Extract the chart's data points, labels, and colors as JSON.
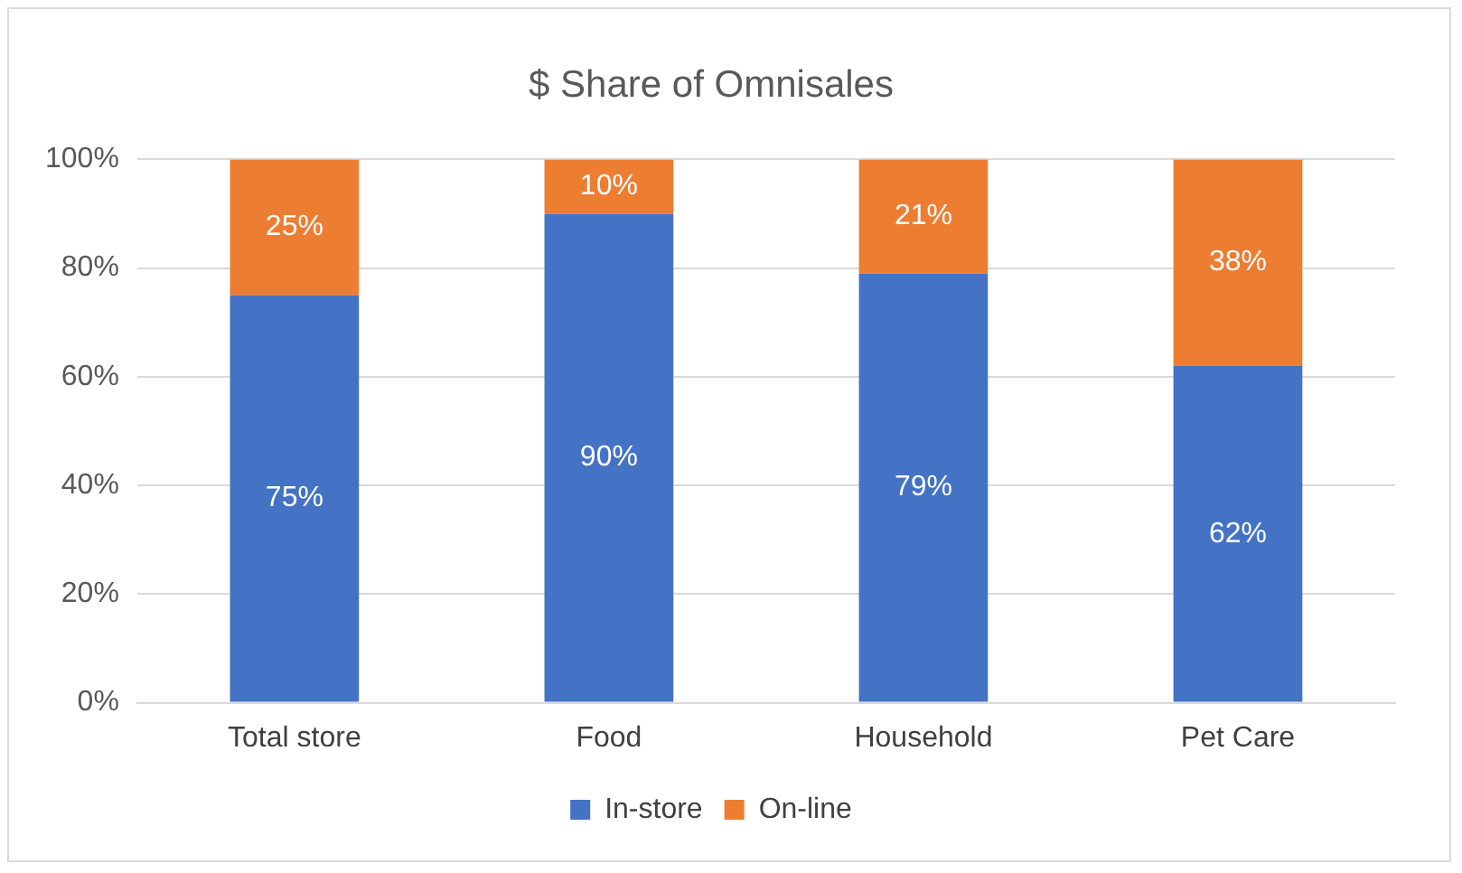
{
  "chart_data": {
    "type": "bar",
    "title": "$ Share of Omnisales",
    "stacked": true,
    "categories": [
      "Total store",
      "Food",
      "Household",
      "Pet Care"
    ],
    "series": [
      {
        "name": "In-store",
        "color": "#4472c4",
        "values": [
          75,
          90,
          79,
          62
        ],
        "value_labels": [
          "75%",
          "90%",
          "79%",
          "62%"
        ]
      },
      {
        "name": "On-line",
        "color": "#ed7d31",
        "values": [
          25,
          10,
          21,
          38
        ],
        "value_labels": [
          "25%",
          "10%",
          "21%",
          "38%"
        ]
      }
    ],
    "ylim": [
      0,
      100
    ],
    "yticks": [
      {
        "value": 0,
        "label": "0%"
      },
      {
        "value": 20,
        "label": "20%"
      },
      {
        "value": 40,
        "label": "40%"
      },
      {
        "value": 60,
        "label": "60%"
      },
      {
        "value": 80,
        "label": "80%"
      },
      {
        "value": 100,
        "label": "100%"
      }
    ],
    "grid": "y",
    "legend": "bottom"
  }
}
